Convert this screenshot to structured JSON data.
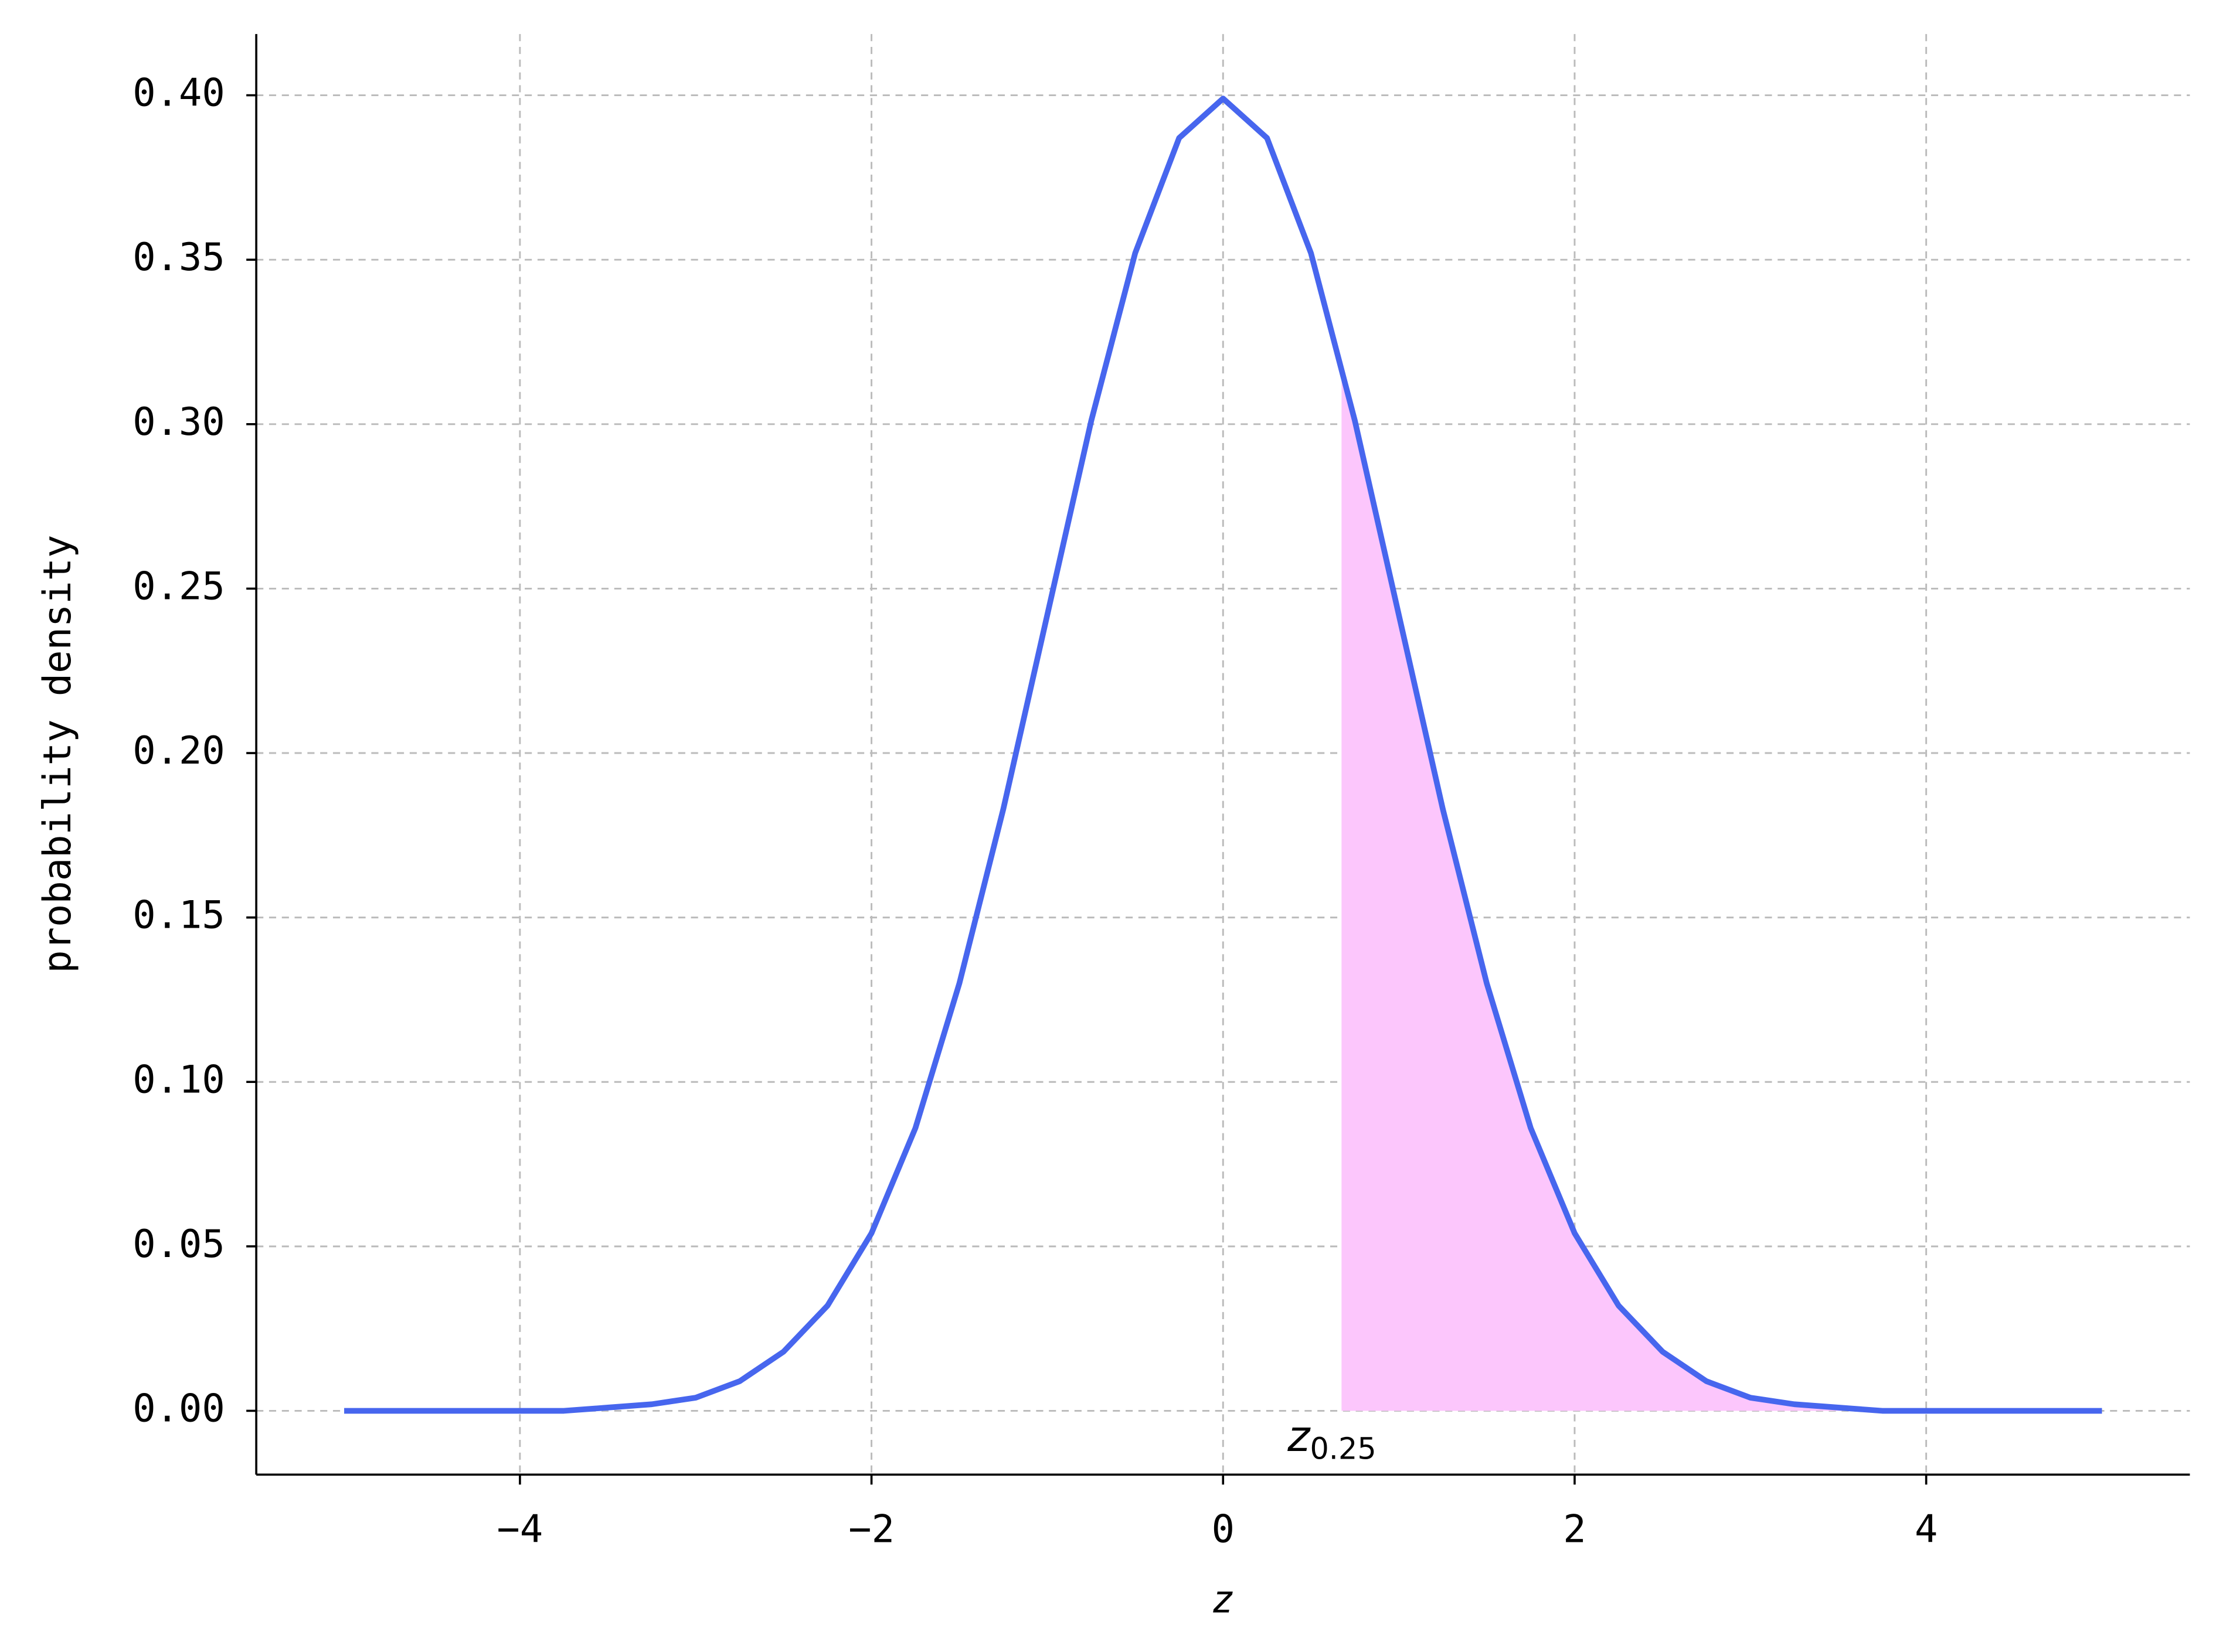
{
  "chart_data": {
    "type": "line",
    "xlabel": "z",
    "ylabel": "probability density",
    "x": [
      -5,
      -4.75,
      -4.5,
      -4.25,
      -4,
      -3.75,
      -3.5,
      -3.25,
      -3,
      -2.75,
      -2.5,
      -2.25,
      -2,
      -1.75,
      -1.5,
      -1.25,
      -1,
      -0.75,
      -0.5,
      -0.25,
      0,
      0.25,
      0.5,
      0.75,
      1,
      1.25,
      1.5,
      1.75,
      2,
      2.25,
      2.5,
      2.75,
      3,
      3.25,
      3.5,
      3.75,
      4,
      4.25,
      4.5,
      4.75,
      5
    ],
    "series": [
      {
        "color": "#4766ee",
        "values": [
          0,
          0,
          0,
          0,
          0,
          0,
          0.001,
          0.002,
          0.004,
          0.009,
          0.018,
          0.032,
          0.054,
          0.086,
          0.13,
          0.183,
          0.242,
          0.301,
          0.352,
          0.387,
          0.399,
          0.387,
          0.352,
          0.301,
          0.242,
          0.183,
          0.13,
          0.086,
          0.054,
          0.032,
          0.018,
          0.009,
          0.004,
          0.002,
          0.001,
          0,
          0,
          0,
          0,
          0,
          0
        ]
      }
    ],
    "area": {
      "color": "#fcc6fc",
      "x": [
        0.674,
        0.75,
        1,
        1.25,
        1.5,
        1.75,
        2,
        2.25,
        2.5,
        2.75,
        3,
        3.25,
        3.5,
        3.75,
        4,
        4.25,
        4.5,
        4.75,
        5
      ],
      "values": [
        0.318,
        0.301,
        0.242,
        0.183,
        0.13,
        0.086,
        0.054,
        0.032,
        0.018,
        0.009,
        0.004,
        0.002,
        0.001,
        0,
        0,
        0,
        0,
        0,
        0
      ]
    },
    "annotation": {
      "text": "z",
      "subscript": "0.25",
      "color": "#f040f0"
    },
    "xlim": [
      -5.5,
      5.5
    ],
    "ylim": [
      -0.0194,
      0.4186
    ],
    "xticks": [
      {
        "value": -4,
        "label": "−4"
      },
      {
        "value": -2,
        "label": "−2"
      },
      0,
      2,
      4
    ],
    "yticks": [
      {
        "value": 0,
        "label": "0.00"
      },
      {
        "value": 0.05,
        "label": "0.05"
      },
      {
        "value": 0.1,
        "label": "0.10"
      },
      {
        "value": 0.15,
        "label": "0.15"
      },
      {
        "value": 0.2,
        "label": "0.20"
      },
      {
        "value": 0.25,
        "label": "0.25"
      },
      {
        "value": 0.3,
        "label": "0.30"
      },
      {
        "value": 0.35,
        "label": "0.35"
      },
      {
        "value": 0.4,
        "label": "0.40"
      }
    ],
    "grid": true
  }
}
